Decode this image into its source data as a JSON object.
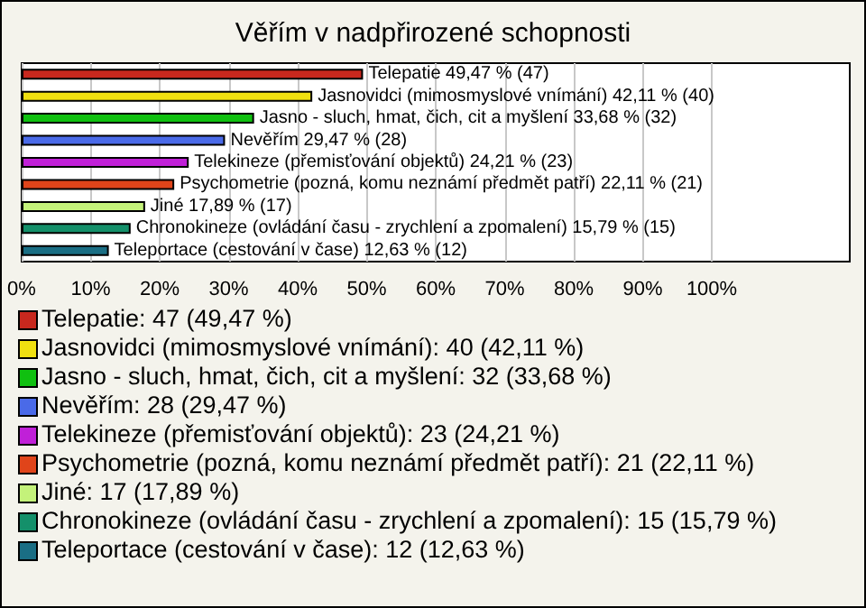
{
  "chart_data": {
    "type": "bar",
    "orientation": "horizontal",
    "title": "Věřím v nadpřirozené schopnosti",
    "categories": [
      null,
      null,
      null,
      null,
      null,
      null,
      null,
      null,
      null
    ],
    "values": [
      49.47,
      42.11,
      33.68,
      29.47,
      24.21,
      22.11,
      17.89,
      15.79,
      12.63
    ],
    "colors": [
      "#c8281e",
      "#f0e010",
      "#10c010",
      "#4a6ae8",
      "#c020d8",
      "#e0441a",
      "#c4f27a",
      "#14906a",
      "#1a6e84"
    ],
    "value_labels": [
      "Telepatie 49,47 % (47)",
      "Jasnovidci (mimosmyslové vnímání) 42,11 % (40)",
      "Jasno - sluch, hmat, čich, cit a myšlení 33,68 % (32)",
      "Nevěřím 29,47 % (28)",
      "Telekineze (přemisťování objektů) 24,21 % (23)",
      "Psychometrie (pozná, komu neznámí předmět patří) 22,11 % (21)",
      "Jiné 17,89 % (17)",
      "Chronokineze (ovládání času - zrychlení a zpomalení) 15,79 % (15)",
      "Teleportace (cestování v čase) 12,63 % (12)"
    ],
    "annotations": [
      "Telepatie: 47 (49,47 %)",
      "Jasnovidci (mimosmyslové vnímání): 40 (42,11 %)",
      "Jasno - sluch, hmat, čich, cit a myšlení: 32 (33,68 %)",
      "Nevěřím: 28 (29,47 %)",
      "Telekineze (přemisťování objektů): 23 (24,21 %)",
      "Psychometrie (pozná, komu neznámí předmět patří): 21 (22,11 %)",
      "Jiné: 17 (17,89 %)",
      "Chronokineze (ovládání času - zrychlení a zpomalení): 15 (15,79 %)",
      "Teleportace (cestování v čase): 12 (12,63 %)"
    ],
    "xlim": [
      0,
      120
    ],
    "xticks": [
      {
        "value": 0,
        "label": "0%"
      },
      {
        "value": 10,
        "label": "10%"
      },
      {
        "value": 20,
        "label": "20%"
      },
      {
        "value": 30,
        "label": "30%"
      },
      {
        "value": 40,
        "label": "40%"
      },
      {
        "value": 50,
        "label": "50%"
      },
      {
        "value": 60,
        "label": "60%"
      },
      {
        "value": 70,
        "label": "70%"
      },
      {
        "value": 80,
        "label": "80%"
      },
      {
        "value": 90,
        "label": "90%"
      },
      {
        "value": 100,
        "label": "100%"
      }
    ],
    "grid": "x"
  }
}
